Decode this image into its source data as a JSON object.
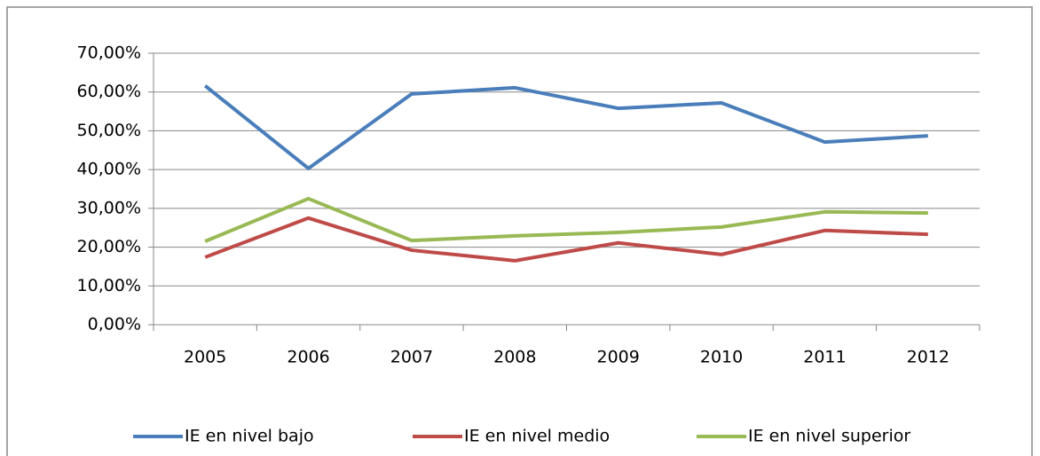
{
  "chart_data": {
    "type": "line",
    "categories": [
      "2005",
      "2006",
      "2007",
      "2008",
      "2009",
      "2010",
      "2011",
      "2012"
    ],
    "series": [
      {
        "name": "IE en nivel bajo",
        "color": "#4a7ebb",
        "values": [
          61.6,
          40.3,
          59.5,
          61.1,
          55.8,
          57.2,
          47.1,
          48.7
        ]
      },
      {
        "name": "IE en nivel medio",
        "color": "#be4b48",
        "values": [
          17.4,
          27.5,
          19.2,
          16.5,
          21.1,
          18.1,
          24.3,
          23.3
        ]
      },
      {
        "name": "IE en nivel superior",
        "color": "#98b954",
        "values": [
          21.5,
          32.5,
          21.7,
          22.9,
          23.8,
          25.2,
          29.1,
          28.8
        ]
      }
    ],
    "ylim": [
      0,
      70
    ],
    "yticks": [
      {
        "value": 0,
        "label": "0,00%"
      },
      {
        "value": 10,
        "label": "10,00%"
      },
      {
        "value": 20,
        "label": "20,00%"
      },
      {
        "value": 30,
        "label": "30,00%"
      },
      {
        "value": 40,
        "label": "40,00%"
      },
      {
        "value": 50,
        "label": "50,00%"
      },
      {
        "value": 60,
        "label": "60,00%"
      },
      {
        "value": 70,
        "label": "70,00%"
      }
    ],
    "grid": true,
    "legend": "bottom"
  }
}
